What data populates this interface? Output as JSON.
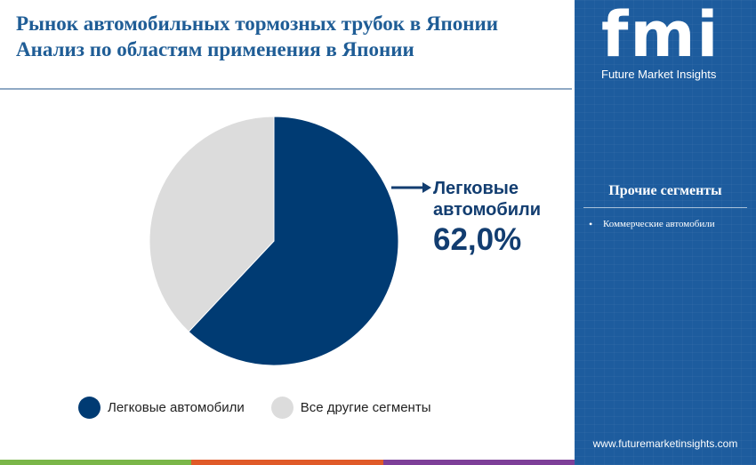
{
  "title": {
    "line1": "Рынок автомобильных тормозных трубок в Японии",
    "line2": "Анализ по областям применения в Японии"
  },
  "chart_data": {
    "type": "pie",
    "slices": [
      {
        "label": "Легковые автомобили",
        "value": 62.0,
        "color": "#003b73"
      },
      {
        "label": "Все другие сегменты",
        "value": 38.0,
        "color": "#dcdcdc"
      }
    ],
    "callout": {
      "label": "Легковые автомобили",
      "value_text": "62,0%"
    },
    "legend": {
      "placement": "bottom"
    }
  },
  "legend_items": [
    {
      "label": "Легковые автомобили",
      "color": "#003b73"
    },
    {
      "label": "Все другие сегменты",
      "color": "#dcdcdc"
    }
  ],
  "callout": {
    "line1": "Легковые",
    "line2": "автомобили",
    "value": "62,0%"
  },
  "sidebar": {
    "logo_text": "fmi",
    "logo_subtitle": "Future Market Insights",
    "other_heading": "Прочие сегменты",
    "other_items": [
      "Коммерческие автомобили"
    ],
    "website": "www.futuremarketinsights.com"
  },
  "colors": {
    "accent": "#1d5c9e",
    "primary_slice": "#003b73",
    "secondary_slice": "#dcdcdc",
    "bottom_bar": [
      "#7ab648",
      "#e05a28",
      "#7d3f98"
    ]
  }
}
